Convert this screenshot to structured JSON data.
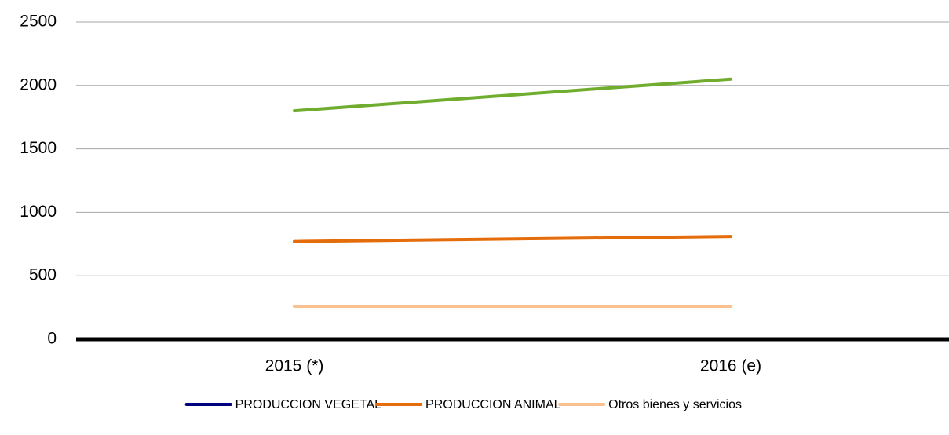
{
  "chart_data": {
    "type": "line",
    "categories": [
      "2015 (*)",
      "2016 (e)"
    ],
    "series": [
      {
        "color": "#70ad2f",
        "values": [
          1800,
          2050
        ]
      },
      {
        "name": "PRODUCCION VEGETAL",
        "color": "#000080",
        "values": [
          null,
          null
        ]
      },
      {
        "name": "PRODUCCION ANIMAL",
        "color": "#e46c0a",
        "values": [
          770,
          810
        ]
      },
      {
        "name": "Otros bienes y servicios",
        "color": "#fac090",
        "values": [
          260,
          260
        ]
      }
    ],
    "ylim": [
      0,
      2500
    ],
    "yticks": [
      0,
      500,
      1000,
      1500,
      2000,
      2500
    ],
    "grid": true,
    "legend": "bottom"
  }
}
